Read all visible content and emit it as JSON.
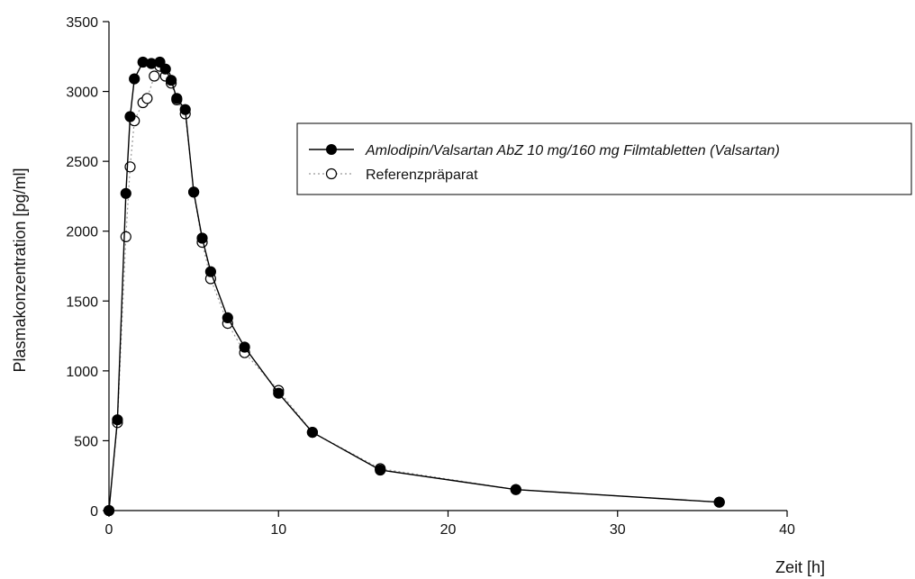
{
  "chart_data": {
    "type": "line",
    "xlabel": "Zeit [h]",
    "ylabel": "Plasmakonzentration [pg/ml]",
    "xlim": [
      0,
      40
    ],
    "ylim": [
      0,
      3500
    ],
    "x_ticks": [
      0,
      10,
      20,
      30,
      40
    ],
    "y_ticks": [
      0,
      500,
      1000,
      1500,
      2000,
      2500,
      3000,
      3500
    ],
    "grid": false,
    "legend_position": "top-right",
    "series": [
      {
        "name": "Amlodipin/Valsartan AbZ 10 mg/160 mg Filmtabletten (Valsartan)",
        "marker": "filled-circle",
        "line_style": "solid",
        "color": "#000000",
        "points": [
          [
            0,
            0
          ],
          [
            0.5,
            650
          ],
          [
            1.0,
            2270
          ],
          [
            1.25,
            2820
          ],
          [
            1.5,
            3090
          ],
          [
            2.0,
            3210
          ],
          [
            2.5,
            3200
          ],
          [
            3.0,
            3210
          ],
          [
            3.33,
            3160
          ],
          [
            3.67,
            3080
          ],
          [
            4.0,
            2950
          ],
          [
            4.5,
            2870
          ],
          [
            5.0,
            2280
          ],
          [
            5.5,
            1950
          ],
          [
            6.0,
            1710
          ],
          [
            7.0,
            1380
          ],
          [
            8.0,
            1170
          ],
          [
            10.0,
            840
          ],
          [
            12.0,
            560
          ],
          [
            16.0,
            290
          ],
          [
            24.0,
            150
          ],
          [
            36.0,
            60
          ]
        ]
      },
      {
        "name": "Referenzpräparat",
        "marker": "open-circle",
        "line_style": "dotted",
        "color": "#999999",
        "points": [
          [
            0,
            0
          ],
          [
            0.5,
            630
          ],
          [
            1.0,
            1960
          ],
          [
            1.25,
            2460
          ],
          [
            1.5,
            2790
          ],
          [
            2.0,
            2920
          ],
          [
            2.25,
            2950
          ],
          [
            2.67,
            3110
          ],
          [
            3.0,
            3180
          ],
          [
            3.33,
            3110
          ],
          [
            3.67,
            3060
          ],
          [
            4.0,
            2940
          ],
          [
            4.5,
            2840
          ],
          [
            5.0,
            2280
          ],
          [
            5.5,
            1920
          ],
          [
            6.0,
            1660
          ],
          [
            7.0,
            1340
          ],
          [
            8.0,
            1130
          ],
          [
            10.0,
            860
          ],
          [
            12.0,
            560
          ],
          [
            16.0,
            300
          ],
          [
            24.0,
            150
          ],
          [
            36.0,
            60
          ]
        ]
      }
    ]
  }
}
